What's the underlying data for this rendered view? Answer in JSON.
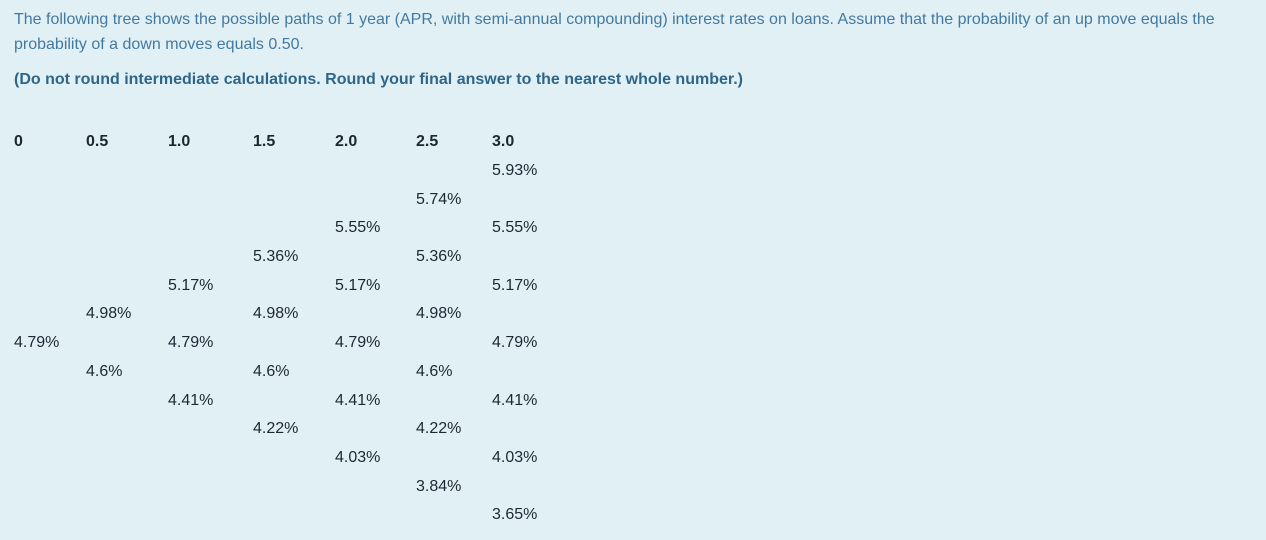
{
  "question": {
    "paragraph": "The following tree shows the possible paths of 1 year (APR, with semi-annual compounding) interest rates on loans. Assume that the probability of an up move equals the probability of a down moves equals 0.50.",
    "note": "(Do not round intermediate calculations. Round your final answer to the nearest whole number.)"
  },
  "tree": {
    "columns": [
      "0",
      "0.5",
      "1.0",
      "1.5",
      "2.0",
      "2.5",
      "3.0"
    ],
    "rows": [
      [
        "",
        "",
        "",
        "",
        "",
        "",
        "5.93%"
      ],
      [
        "",
        "",
        "",
        "",
        "",
        "5.74%",
        ""
      ],
      [
        "",
        "",
        "",
        "",
        "5.55%",
        "",
        "5.55%"
      ],
      [
        "",
        "",
        "",
        "5.36%",
        "",
        "5.36%",
        ""
      ],
      [
        "",
        "",
        "5.17%",
        "",
        "5.17%",
        "",
        "5.17%"
      ],
      [
        "",
        "4.98%",
        "",
        "4.98%",
        "",
        "4.98%",
        ""
      ],
      [
        "4.79%",
        "",
        "4.79%",
        "",
        "4.79%",
        "",
        "4.79%"
      ],
      [
        "",
        "4.6%",
        "",
        "4.6%",
        "",
        "4.6%",
        ""
      ],
      [
        "",
        "",
        "4.41%",
        "",
        "4.41%",
        "",
        "4.41%"
      ],
      [
        "",
        "",
        "",
        "4.22%",
        "",
        "4.22%",
        ""
      ],
      [
        "",
        "",
        "",
        "",
        "4.03%",
        "",
        "4.03%"
      ],
      [
        "",
        "",
        "",
        "",
        "",
        "3.84%",
        ""
      ],
      [
        "",
        "",
        "",
        "",
        "",
        "",
        "3.65%"
      ]
    ]
  },
  "colors": {
    "background": "#e1f0f5",
    "paragraph_text": "#44799f",
    "note_text": "#2d6689",
    "tree_text": "#1b2833"
  }
}
